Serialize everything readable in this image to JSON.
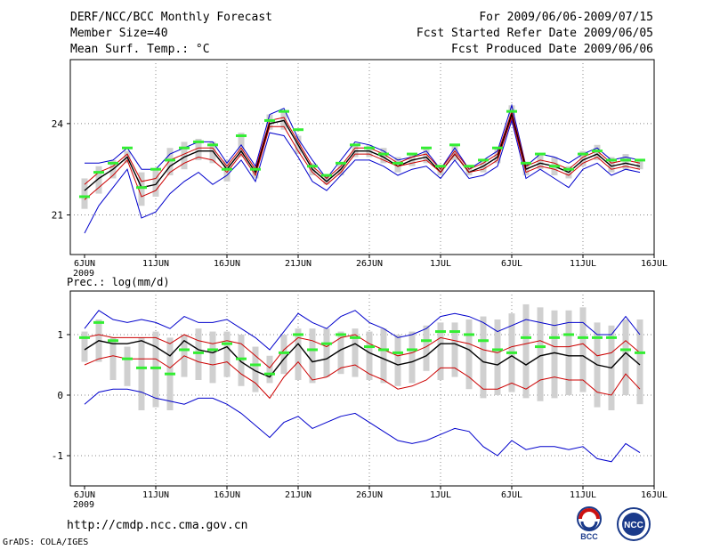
{
  "header": {
    "title": "DERF/NCC/BCC Monthly Forecast",
    "member_size": "Member Size=40",
    "variable": "Mean Surf. Temp.: °C",
    "period": "For 2009/06/06-2009/07/15",
    "started": "Fcst Started Refer Date 2009/06/05",
    "produced": "Fcst Produced Date 2009/06/06"
  },
  "footer": {
    "url": "http://cmdp.ncc.cma.gov.cn",
    "grads": "GrADS: COLA/IGES",
    "logo_bcc": "BCC",
    "logo_ncc": "NCC"
  },
  "colors": {
    "blue": "#0000cc",
    "red": "#cc0000",
    "black": "#000000",
    "green": "#33ee33",
    "box": "#d0d0d0",
    "grid": "#888888"
  },
  "chart_data": [
    {
      "type": "line",
      "title": "Mean Surf. Temp.: °C",
      "days": 40,
      "x_tick_labels": [
        "6JUN",
        "11JUN",
        "16JUN",
        "21JUN",
        "26JUN",
        "1JUL",
        "6JUL",
        "11JUL",
        "16JUL"
      ],
      "x_year_label": "2009",
      "y_ticks": [
        21,
        24
      ],
      "ylim": [
        19.7,
        26.1
      ],
      "series": [
        {
          "name": "max",
          "color": "blue",
          "values": [
            22.7,
            22.7,
            22.8,
            23.2,
            22.5,
            22.5,
            23.0,
            23.2,
            23.4,
            23.4,
            22.7,
            23.3,
            22.6,
            24.3,
            24.5,
            23.5,
            22.8,
            22.2,
            22.8,
            23.4,
            23.3,
            23.1,
            22.8,
            22.9,
            23.1,
            22.5,
            23.2,
            22.5,
            22.8,
            23.1,
            24.6,
            22.6,
            23.0,
            22.9,
            22.7,
            23.0,
            23.2,
            22.8,
            22.9,
            22.8
          ]
        },
        {
          "name": "upper",
          "color": "red",
          "values": [
            22.0,
            22.4,
            22.6,
            23.0,
            22.1,
            22.2,
            22.8,
            23.0,
            23.2,
            23.2,
            22.6,
            23.2,
            22.5,
            24.1,
            24.2,
            23.4,
            22.6,
            22.2,
            22.6,
            23.2,
            23.2,
            23.0,
            22.7,
            22.9,
            23.0,
            22.5,
            23.1,
            22.5,
            22.7,
            23.0,
            24.4,
            22.6,
            22.8,
            22.7,
            22.5,
            22.9,
            23.1,
            22.7,
            22.8,
            22.7
          ]
        },
        {
          "name": "mean",
          "color": "black",
          "values": [
            21.8,
            22.2,
            22.5,
            22.9,
            21.9,
            22.0,
            22.6,
            22.9,
            23.1,
            23.1,
            22.5,
            23.1,
            22.4,
            24.0,
            24.1,
            23.3,
            22.5,
            22.1,
            22.5,
            23.1,
            23.1,
            22.9,
            22.6,
            22.8,
            22.9,
            22.4,
            23.0,
            22.4,
            22.6,
            22.9,
            24.3,
            22.5,
            22.7,
            22.6,
            22.4,
            22.8,
            23.0,
            22.6,
            22.7,
            22.6
          ]
        },
        {
          "name": "lower",
          "color": "red",
          "values": [
            21.5,
            21.9,
            22.3,
            22.8,
            21.6,
            21.8,
            22.4,
            22.7,
            22.9,
            22.8,
            22.4,
            23.0,
            22.3,
            23.9,
            23.9,
            23.1,
            22.4,
            22.0,
            22.4,
            23.0,
            23.0,
            22.8,
            22.6,
            22.7,
            22.8,
            22.4,
            23.0,
            22.4,
            22.5,
            22.8,
            24.2,
            22.4,
            22.6,
            22.5,
            22.3,
            22.7,
            22.9,
            22.5,
            22.6,
            22.5
          ]
        },
        {
          "name": "min",
          "color": "blue",
          "values": [
            20.4,
            21.3,
            21.9,
            22.5,
            20.9,
            21.1,
            21.7,
            22.1,
            22.4,
            22.0,
            22.3,
            22.8,
            22.1,
            23.7,
            23.6,
            22.9,
            22.1,
            21.8,
            22.3,
            22.8,
            22.8,
            22.6,
            22.3,
            22.5,
            22.6,
            22.2,
            22.8,
            22.2,
            22.3,
            22.6,
            24.1,
            22.2,
            22.5,
            22.2,
            21.9,
            22.5,
            22.7,
            22.3,
            22.5,
            22.4
          ]
        }
      ],
      "box_low": [
        21.2,
        21.7,
        22.2,
        22.7,
        21.3,
        21.6,
        22.3,
        22.5,
        22.8,
        22.7,
        22.1,
        22.9,
        22.2,
        23.8,
        23.8,
        23.0,
        22.3,
        22.0,
        22.3,
        22.9,
        22.9,
        22.7,
        22.4,
        22.6,
        22.7,
        22.3,
        22.8,
        22.3,
        22.4,
        22.7,
        24.0,
        22.3,
        22.5,
        22.3,
        22.2,
        22.6,
        22.8,
        22.4,
        22.5,
        22.5
      ],
      "box_high": [
        22.2,
        22.6,
        22.8,
        23.1,
        22.4,
        22.5,
        23.2,
        23.4,
        23.5,
        23.4,
        22.8,
        23.7,
        22.6,
        24.3,
        24.4,
        23.6,
        22.7,
        22.3,
        22.7,
        23.3,
        23.3,
        23.2,
        22.9,
        23.0,
        23.2,
        22.6,
        23.3,
        22.6,
        22.8,
        23.2,
        24.6,
        22.7,
        23.0,
        22.9,
        22.6,
        23.1,
        23.3,
        22.9,
        23.0,
        22.8
      ],
      "marker": [
        21.6,
        22.4,
        22.7,
        23.2,
        21.9,
        22.5,
        22.8,
        23.2,
        23.4,
        23.3,
        22.5,
        23.6,
        22.5,
        24.1,
        24.4,
        23.8,
        22.6,
        22.3,
        22.7,
        23.3,
        23.2,
        23.0,
        22.7,
        23.0,
        23.2,
        22.6,
        23.3,
        22.6,
        22.8,
        23.2,
        24.4,
        22.7,
        23.0,
        22.6,
        22.5,
        23.0,
        23.1,
        22.8,
        22.8,
        22.8
      ]
    },
    {
      "type": "line",
      "title": "Prec.: log(mm/d)",
      "days": 40,
      "x_tick_labels": [
        "6JUN",
        "11JUN",
        "16JUN",
        "21JUN",
        "26JUN",
        "1JUL",
        "6JUL",
        "11JUL",
        "16JUL"
      ],
      "x_year_label": "2009",
      "y_ticks": [
        -1,
        0,
        1
      ],
      "ylim": [
        -1.5,
        1.72
      ],
      "series": [
        {
          "name": "max",
          "color": "blue",
          "values": [
            1.1,
            1.4,
            1.25,
            1.2,
            1.25,
            1.2,
            1.1,
            1.3,
            1.2,
            1.2,
            1.25,
            1.1,
            0.95,
            0.75,
            1.05,
            1.35,
            1.2,
            1.1,
            1.3,
            1.4,
            1.2,
            1.1,
            0.95,
            1.0,
            1.1,
            1.3,
            1.35,
            1.3,
            1.2,
            1.05,
            1.15,
            1.25,
            1.2,
            1.15,
            1.2,
            1.2,
            1.0,
            1.0,
            1.3,
            1.0
          ]
        },
        {
          "name": "upper",
          "color": "red",
          "values": [
            0.95,
            1.0,
            0.95,
            0.95,
            0.95,
            0.95,
            0.85,
            1.0,
            0.9,
            0.85,
            0.9,
            0.85,
            0.65,
            0.45,
            0.75,
            0.95,
            0.9,
            0.8,
            0.95,
            1.0,
            0.85,
            0.75,
            0.65,
            0.7,
            0.8,
            0.95,
            0.9,
            0.85,
            0.75,
            0.7,
            0.8,
            0.85,
            0.9,
            0.8,
            0.8,
            0.85,
            0.65,
            0.7,
            0.9,
            0.7
          ]
        },
        {
          "name": "mean",
          "color": "black",
          "values": [
            0.75,
            0.9,
            0.85,
            0.85,
            0.9,
            0.8,
            0.65,
            0.9,
            0.75,
            0.7,
            0.8,
            0.55,
            0.4,
            0.3,
            0.6,
            0.85,
            0.55,
            0.6,
            0.75,
            0.85,
            0.7,
            0.6,
            0.5,
            0.55,
            0.65,
            0.85,
            0.85,
            0.75,
            0.55,
            0.5,
            0.65,
            0.5,
            0.65,
            0.7,
            0.65,
            0.65,
            0.5,
            0.45,
            0.7,
            0.5
          ]
        },
        {
          "name": "lower",
          "color": "red",
          "values": [
            0.5,
            0.6,
            0.65,
            0.6,
            0.6,
            0.6,
            0.45,
            0.65,
            0.55,
            0.5,
            0.55,
            0.35,
            0.2,
            -0.05,
            0.3,
            0.55,
            0.25,
            0.3,
            0.45,
            0.5,
            0.35,
            0.25,
            0.1,
            0.15,
            0.25,
            0.45,
            0.45,
            0.3,
            0.1,
            0.1,
            0.2,
            0.1,
            0.25,
            0.3,
            0.25,
            0.25,
            0.05,
            0.0,
            0.35,
            0.1
          ]
        },
        {
          "name": "min",
          "color": "blue",
          "values": [
            -0.15,
            0.05,
            0.1,
            0.1,
            0.05,
            -0.05,
            -0.1,
            -0.15,
            -0.05,
            -0.05,
            -0.15,
            -0.3,
            -0.5,
            -0.7,
            -0.45,
            -0.35,
            -0.55,
            -0.45,
            -0.35,
            -0.3,
            -0.45,
            -0.6,
            -0.75,
            -0.8,
            -0.75,
            -0.65,
            -0.55,
            -0.6,
            -0.85,
            -1.0,
            -0.75,
            -0.9,
            -0.85,
            -0.85,
            -0.9,
            -0.85,
            -1.05,
            -1.1,
            -0.8,
            -0.95
          ]
        },
        {
          "name": "median",
          "color": "green",
          "values": [
            0.95,
            1.2,
            0.85,
            0.6,
            0.45,
            0.45,
            0.35,
            0.75,
            0.7,
            0.75,
            0.85,
            0.6,
            0.5,
            0.35,
            0.7,
            1.0,
            0.75,
            0.85,
            1.0,
            0.95,
            0.8,
            0.75,
            0.7,
            0.75,
            0.9,
            1.05,
            1.05,
            1.0,
            0.9,
            0.75,
            0.7,
            0.95,
            0.8,
            0.95,
            1.0,
            0.95,
            0.95,
            0.95,
            0.75,
            0.7
          ]
        }
      ],
      "box_low": [
        0.55,
        0.55,
        0.25,
        0.15,
        -0.25,
        -0.2,
        -0.25,
        0.3,
        0.25,
        0.2,
        0.3,
        0.15,
        0.05,
        0.2,
        0.35,
        0.25,
        0.2,
        0.3,
        0.35,
        0.3,
        0.25,
        0.2,
        0.15,
        0.2,
        0.4,
        0.25,
        0.3,
        0.1,
        -0.05,
        0.0,
        0.05,
        -0.05,
        -0.1,
        -0.05,
        0.0,
        0.05,
        -0.2,
        -0.25,
        0.0,
        -0.15
      ],
      "box_high": [
        1.05,
        1.25,
        0.95,
        0.8,
        0.95,
        1.05,
        0.95,
        1.0,
        1.1,
        1.05,
        1.05,
        1.0,
        0.8,
        0.65,
        1.0,
        1.1,
        1.1,
        1.1,
        1.05,
        1.1,
        1.05,
        1.1,
        1.0,
        1.05,
        1.15,
        1.2,
        1.2,
        1.25,
        1.3,
        1.25,
        1.35,
        1.5,
        1.45,
        1.4,
        1.4,
        1.45,
        1.2,
        1.15,
        1.25,
        1.25
      ],
      "marker": [
        0.95,
        1.2,
        0.9,
        0.6,
        0.45,
        0.45,
        0.35,
        0.75,
        0.7,
        0.75,
        0.85,
        0.6,
        0.5,
        0.35,
        0.7,
        1.0,
        0.75,
        0.85,
        1.0,
        0.95,
        0.8,
        0.75,
        0.7,
        0.75,
        0.9,
        1.05,
        1.05,
        1.0,
        0.9,
        0.75,
        0.7,
        0.95,
        0.8,
        0.95,
        1.0,
        0.95,
        0.95,
        0.95,
        0.75,
        0.7
      ]
    }
  ]
}
